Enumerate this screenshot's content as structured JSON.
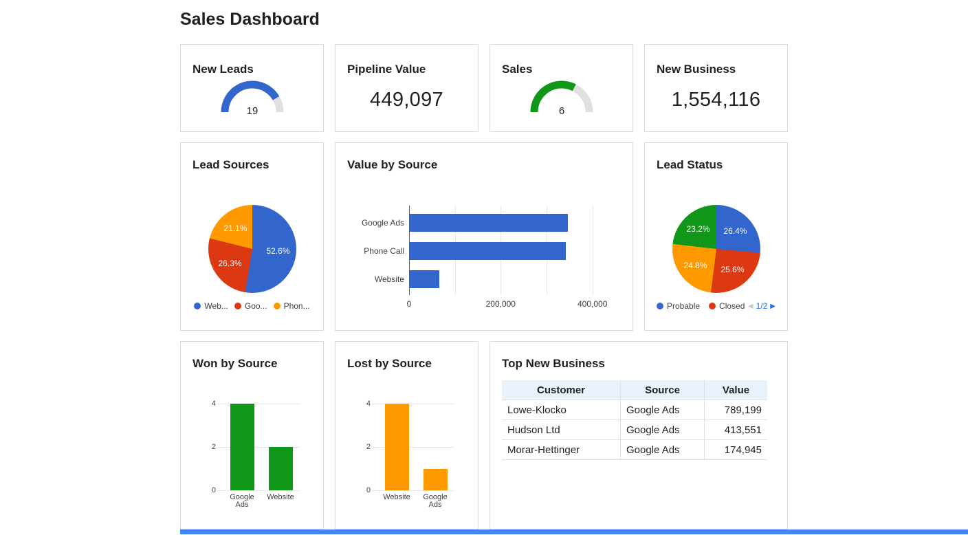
{
  "page": {
    "title": "Sales Dashboard"
  },
  "colors": {
    "blue": "#3366CC",
    "red": "#DC3912",
    "orange": "#FF9900",
    "green": "#109618",
    "gauge_track": "#e0e0e0",
    "card_border": "#d9d9d9",
    "grid_line": "#e6e6e6",
    "table_header_bg": "#e9f1fc",
    "pager_active": "#1a73e8",
    "pager_disabled": "#c9c9c9",
    "scrollbar": "#4285F4"
  },
  "chart_data": [
    {
      "type": "gauge",
      "title": "New Leads",
      "value": "19",
      "fraction": 0.83,
      "color": "#3366CC",
      "track_color": "#e0e0e0"
    },
    {
      "type": "scorecard",
      "title": "Pipeline Value",
      "value": "449,097"
    },
    {
      "type": "gauge",
      "title": "Sales",
      "value": "6",
      "fraction": 0.65,
      "color": "#109618",
      "track_color": "#e0e0e0"
    },
    {
      "type": "scorecard",
      "title": "New Business",
      "value": "1,554,116"
    },
    {
      "type": "pie",
      "title": "Lead Sources",
      "values": [
        52.6,
        26.3,
        21.1
      ],
      "value_labels": [
        "52.6%",
        "26.3%",
        "21.1%"
      ],
      "colors": [
        "#3366CC",
        "#DC3912",
        "#FF9900"
      ],
      "legend": [
        {
          "label": "Web...",
          "color": "#3366CC"
        },
        {
          "label": "Goo...",
          "color": "#DC3912"
        },
        {
          "label": "Phon...",
          "color": "#FF9900"
        }
      ]
    },
    {
      "type": "bar",
      "orientation": "horizontal",
      "title": "Value by Source",
      "categories": [
        "Google Ads",
        "Phone Call",
        "Website"
      ],
      "values": [
        345000,
        341000,
        64000
      ],
      "color": "#3366CC",
      "xlim": [
        0,
        420000
      ],
      "gridlines": [
        0,
        100000,
        200000,
        300000,
        400000
      ],
      "xticks": [
        {
          "v": 0,
          "label": "0"
        },
        {
          "v": 200000,
          "label": "200,000"
        },
        {
          "v": 400000,
          "label": "400,000"
        }
      ]
    },
    {
      "type": "pie",
      "title": "Lead Status",
      "values": [
        26.4,
        25.6,
        24.8,
        23.2
      ],
      "value_labels": [
        "26.4%",
        "25.6%",
        "24.8%",
        "23.2%"
      ],
      "colors": [
        "#3366CC",
        "#DC3912",
        "#FF9900",
        "#109618"
      ],
      "legend": [
        {
          "label": "Probable",
          "color": "#3366CC"
        },
        {
          "label": "Closed",
          "color": "#DC3912"
        }
      ],
      "pager": {
        "prev": "◀",
        "label": "1/2",
        "next": "▶"
      }
    },
    {
      "type": "bar",
      "orientation": "vertical",
      "title": "Won by Source",
      "categories": [
        "Google Ads",
        "Website"
      ],
      "values": [
        4,
        2
      ],
      "color": "#109618",
      "ylim": [
        0,
        4
      ],
      "yticks": [
        0,
        2,
        4
      ]
    },
    {
      "type": "bar",
      "orientation": "vertical",
      "title": "Lost by Source",
      "categories": [
        "Website",
        "Google Ads"
      ],
      "values": [
        4,
        1
      ],
      "color": "#FF9900",
      "ylim": [
        0,
        4
      ],
      "yticks": [
        0,
        2,
        4
      ]
    },
    {
      "type": "table",
      "title": "Top New Business",
      "headers": [
        "Customer",
        "Source",
        "Value"
      ],
      "rows": [
        [
          "Lowe-Klocko",
          "Google Ads",
          "789,199"
        ],
        [
          "Hudson Ltd",
          "Google Ads",
          "413,551"
        ],
        [
          "Morar-Hettinger",
          "Google Ads",
          "174,945"
        ]
      ]
    }
  ]
}
